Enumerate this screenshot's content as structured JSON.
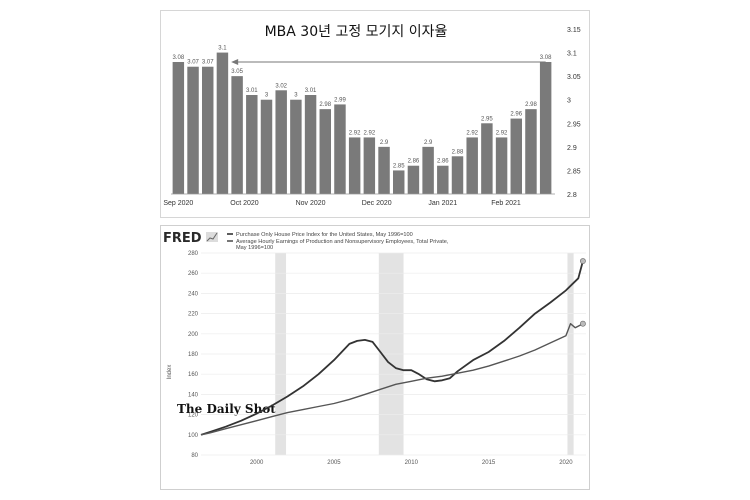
{
  "chart_data": [
    {
      "type": "bar",
      "title": "MBA 30년 고정 모기지 이자율",
      "values": [
        3.08,
        3.07,
        3.07,
        3.1,
        3.05,
        3.01,
        3.0,
        3.02,
        3.0,
        3.01,
        2.98,
        2.99,
        2.92,
        2.92,
        2.9,
        2.85,
        2.86,
        2.9,
        2.86,
        2.88,
        2.92,
        2.95,
        2.92,
        2.96,
        2.98,
        3.08
      ],
      "labels": [
        "3.08",
        "3.07",
        "3.07",
        "3.1",
        "3.05",
        "3.01",
        "3",
        "3.02",
        "3",
        "3.01",
        "2.98",
        "2.99",
        "2.92",
        "2.92",
        "2.9",
        "2.85",
        "2.86",
        "2.9",
        "2.86",
        "2.88",
        "2.92",
        "2.95",
        "2.92",
        "2.96",
        "2.98",
        "3.08"
      ],
      "x_tick_labels": [
        {
          "label": "Sep 2020",
          "bar": 0
        },
        {
          "label": "Oct 2020",
          "bar": 4.5
        },
        {
          "label": "Nov 2020",
          "bar": 9
        },
        {
          "label": "Dec 2020",
          "bar": 13.5
        },
        {
          "label": "Jan 2021",
          "bar": 18
        },
        {
          "label": "Feb 2021",
          "bar": 22.3
        }
      ],
      "y_ticks": [
        "3.15",
        "3.1",
        "3.05",
        "3",
        "2.95",
        "2.9",
        "2.85",
        "2.8"
      ],
      "y_tick_values": [
        3.15,
        3.1,
        3.05,
        3.0,
        2.95,
        2.9,
        2.85,
        2.8
      ],
      "ylim": [
        2.8,
        3.15
      ],
      "y_axis_side": "right",
      "annotation": {
        "type": "arrow",
        "from_bar": 25,
        "to_bar": 3,
        "value": 3.08
      },
      "color": "#7a7a7a"
    },
    {
      "type": "line",
      "source_logo": "FRED",
      "ylabel": "Index",
      "y_ticks": [
        "280",
        "260",
        "240",
        "220",
        "200",
        "180",
        "160",
        "140",
        "120",
        "100",
        "80"
      ],
      "y_tick_values": [
        280,
        260,
        240,
        220,
        200,
        180,
        160,
        140,
        120,
        100,
        80
      ],
      "ylim": [
        80,
        280
      ],
      "x_ticks": [
        "2000",
        "2005",
        "2010",
        "2015",
        "2020"
      ],
      "x_tick_values": [
        2000,
        2005,
        2010,
        2015,
        2020
      ],
      "xlim": [
        1996.4,
        2021.3
      ],
      "recessions": [
        [
          2001.2,
          2001.9
        ],
        [
          2007.9,
          2009.5
        ],
        [
          2020.1,
          2020.5
        ]
      ],
      "watermark": "The Daily Shot",
      "watermark_mark": "®",
      "series": [
        {
          "name": "Purchase Only House Price Index for the United States, May 1996=100",
          "color": "#333333",
          "x": [
            1996.4,
            1997,
            1998,
            1999,
            2000,
            2001,
            2002,
            2003,
            2004,
            2005,
            2006,
            2006.5,
            2007,
            2007.5,
            2008,
            2008.5,
            2009,
            2009.5,
            2010,
            2010.5,
            2011,
            2011.5,
            2012,
            2012.5,
            2013,
            2014,
            2015,
            2016,
            2017,
            2018,
            2019,
            2019.5,
            2020,
            2020.4,
            2020.8,
            2021.1
          ],
          "y": [
            100,
            103,
            108,
            114,
            121,
            129,
            138,
            148,
            160,
            174,
            190,
            193,
            194,
            192,
            182,
            172,
            166,
            164,
            164,
            160,
            155,
            153,
            154,
            156,
            163,
            174,
            182,
            193,
            206,
            220,
            231,
            237,
            243,
            249,
            255,
            272
          ]
        },
        {
          "name": "Average Hourly Earnings of Production and Nonsupervisory Employees, Total Private, May 1996=100",
          "color": "#555555",
          "x": [
            1996.4,
            1997,
            1998,
            1999,
            2000,
            2001,
            2002,
            2003,
            2004,
            2005,
            2006,
            2007,
            2008,
            2009,
            2010,
            2011,
            2012,
            2013,
            2014,
            2015,
            2016,
            2017,
            2018,
            2019,
            2020,
            2020.3,
            2020.6,
            2021.1
          ],
          "y": [
            100,
            102,
            106,
            110,
            114,
            118,
            122,
            125,
            128,
            131,
            135,
            140,
            145,
            150,
            153,
            156,
            158,
            161,
            164,
            168,
            173,
            178,
            184,
            191,
            198,
            210,
            206,
            210
          ]
        }
      ]
    }
  ]
}
